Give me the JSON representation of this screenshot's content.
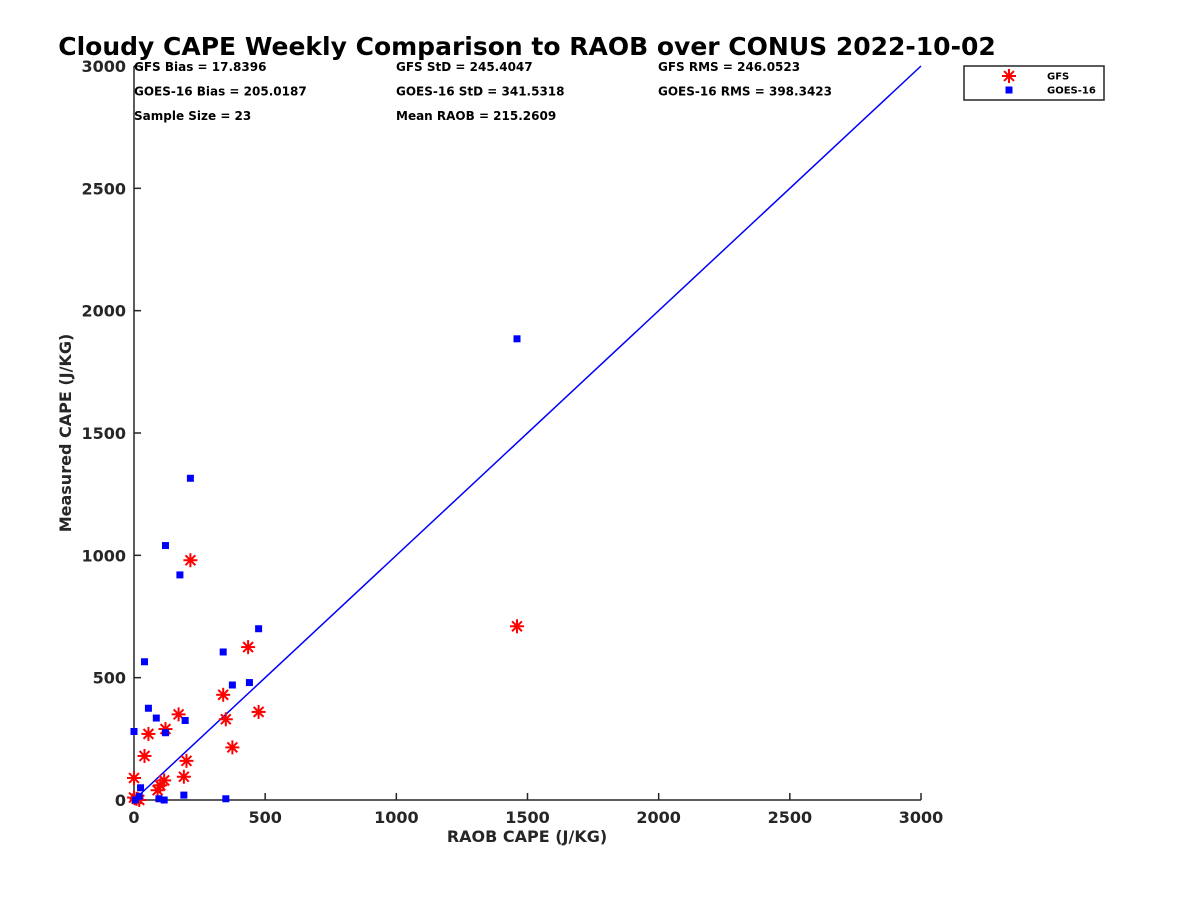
{
  "chart_data": {
    "type": "scatter",
    "title": "Cloudy CAPE Weekly Comparison to RAOB over CONUS 2022-10-02",
    "xlabel": "RAOB CAPE (J/KG)",
    "ylabel": "Measured CAPE (J/KG)",
    "xlim": [
      0,
      3000
    ],
    "ylim": [
      0,
      3000
    ],
    "xticks": [
      0,
      500,
      1000,
      1500,
      2000,
      2500,
      3000
    ],
    "yticks": [
      0,
      500,
      1000,
      1500,
      2000,
      2500,
      3000
    ],
    "grid": false,
    "legend_position": "top-right (outside plot)",
    "reference_line": {
      "from": [
        0,
        0
      ],
      "to": [
        3000,
        3000
      ],
      "color": "#0000ff"
    },
    "stats": [
      [
        "GFS Bias = 17.8396",
        "GFS StD = 245.4047",
        "GFS RMS = 246.0523"
      ],
      [
        "GOES-16 Bias = 205.0187",
        "GOES-16 StD = 341.5318",
        "GOES-16 RMS = 398.3423"
      ],
      [
        "Sample Size = 23",
        "Mean RAOB = 215.2609",
        ""
      ]
    ],
    "series": [
      {
        "name": "GFS",
        "marker": "asterisk",
        "color": "#ff0000",
        "points": [
          [
            0,
            90
          ],
          [
            0,
            10
          ],
          [
            10,
            5
          ],
          [
            20,
            0
          ],
          [
            40,
            180
          ],
          [
            55,
            270
          ],
          [
            90,
            40
          ],
          [
            100,
            60
          ],
          [
            115,
            80
          ],
          [
            120,
            290
          ],
          [
            170,
            350
          ],
          [
            190,
            95
          ],
          [
            200,
            160
          ],
          [
            215,
            980
          ],
          [
            340,
            430
          ],
          [
            350,
            330
          ],
          [
            375,
            215
          ],
          [
            435,
            625
          ],
          [
            475,
            360
          ],
          [
            1460,
            710
          ]
        ]
      },
      {
        "name": "GOES-16",
        "marker": "square",
        "color": "#0000ff",
        "points": [
          [
            0,
            280
          ],
          [
            5,
            0
          ],
          [
            20,
            15
          ],
          [
            25,
            50
          ],
          [
            40,
            565
          ],
          [
            55,
            375
          ],
          [
            85,
            335
          ],
          [
            95,
            5
          ],
          [
            115,
            0
          ],
          [
            120,
            275
          ],
          [
            120,
            1040
          ],
          [
            175,
            920
          ],
          [
            190,
            20
          ],
          [
            195,
            325
          ],
          [
            215,
            1315
          ],
          [
            340,
            605
          ],
          [
            350,
            5
          ],
          [
            375,
            470
          ],
          [
            440,
            480
          ],
          [
            475,
            700
          ],
          [
            1460,
            1885
          ]
        ]
      }
    ]
  }
}
